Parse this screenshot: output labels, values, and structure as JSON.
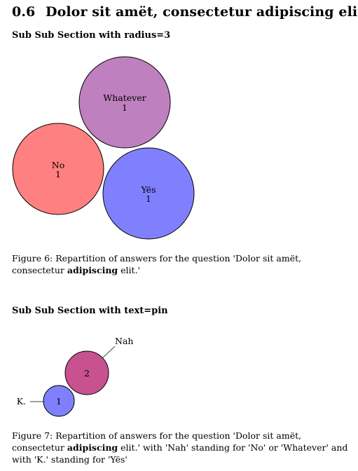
{
  "section": {
    "number": "0.6",
    "title": "Dolor sit amët, consectetur adipiscing elit."
  },
  "subsection_1": {
    "title": "Sub Sub Section with radius=3"
  },
  "figure_6": {
    "caption_prefix": "Figure 6:",
    "caption_text_a": "Repartition of answers for the question 'Dolor sit amët, consectetur",
    "caption_bold": "adipiscing",
    "caption_text_b": "elit.'"
  },
  "subsection_2": {
    "title": "Sub Sub Section with text=pin"
  },
  "figure_7": {
    "caption_prefix": "Figure 7:",
    "caption_text_a": "Repartition of answers for the question 'Dolor sit amët, consectetur",
    "caption_bold": "adipiscing",
    "caption_text_b": "elit.' with 'Nah' standing for 'No' or 'Whatever' and with 'K.' standing for 'Yës'"
  },
  "chart_data": [
    {
      "type": "bubble",
      "title": "",
      "series": [
        {
          "name": "Whatever",
          "value": 1,
          "color": "#bf80bf"
        },
        {
          "name": "No",
          "value": 1,
          "color": "#ff8080"
        },
        {
          "name": "Yës",
          "value": 1,
          "color": "#8080ff"
        }
      ]
    },
    {
      "type": "bubble",
      "title": "",
      "series": [
        {
          "name": "Nah",
          "value": 2,
          "color": "#c8528f"
        },
        {
          "name": "K.",
          "value": 1,
          "color": "#8080ff"
        }
      ]
    }
  ]
}
